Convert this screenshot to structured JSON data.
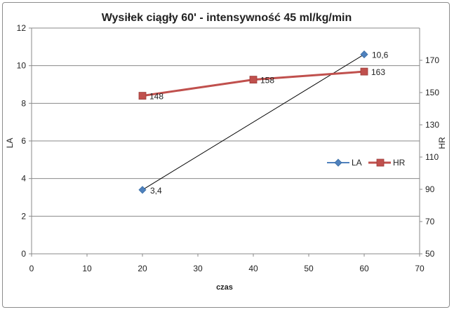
{
  "chart_data": {
    "type": "line",
    "title": "Wysiłek ciągły 60' - intensywność 45 ml/kg/min",
    "xlabel": "czas",
    "ylabel": "LA",
    "y2label": "HR",
    "xlim": [
      0,
      70
    ],
    "ylim": [
      0,
      12
    ],
    "y2lim": [
      50,
      190
    ],
    "x_ticks": [
      "0",
      "10",
      "20",
      "30",
      "40",
      "50",
      "60",
      "70"
    ],
    "y_ticks": [
      "0",
      "2",
      "4",
      "6",
      "8",
      "10",
      "12"
    ],
    "y2_ticks": [
      "50",
      "70",
      "90",
      "110",
      "130",
      "150",
      "170"
    ],
    "grid": true,
    "legend_position": "right",
    "series": [
      {
        "name": "LA",
        "axis": "left",
        "color": "#4f81bd",
        "marker": "diamond",
        "x": [
          20,
          60
        ],
        "y": [
          3.4,
          10.6
        ],
        "labels": [
          "3,4",
          "10,6"
        ]
      },
      {
        "name": "HR",
        "axis": "right",
        "color": "#c0504d",
        "marker": "square",
        "x": [
          20,
          40,
          60
        ],
        "y": [
          148,
          158,
          163
        ],
        "labels": [
          "148",
          "158",
          "163"
        ]
      }
    ],
    "trendline": {
      "series": "LA",
      "color": "#000000"
    }
  }
}
